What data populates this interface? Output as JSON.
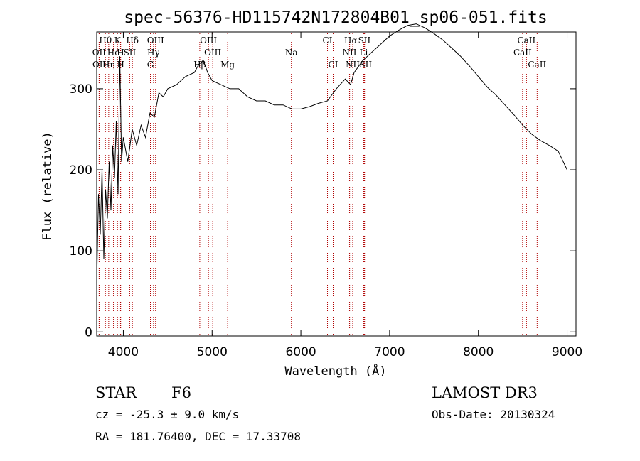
{
  "chart_data": {
    "type": "line",
    "title": "spec-56376-HD115742N172804B01_sp06-051.fits",
    "xlabel": "Wavelength (Å)",
    "ylabel": "Flux (relative)",
    "xlim": [
      3700,
      9100
    ],
    "ylim": [
      -5,
      370
    ],
    "xticks": [
      4000,
      5000,
      6000,
      7000,
      8000,
      9000
    ],
    "yticks": [
      0,
      100,
      200,
      300
    ],
    "grid": false,
    "series": [
      {
        "x": [
          3700,
          3720,
          3740,
          3760,
          3780,
          3800,
          3820,
          3840,
          3860,
          3880,
          3900,
          3920,
          3940,
          3960,
          3980,
          4000,
          4050,
          4100,
          4150,
          4200,
          4250,
          4300,
          4350,
          4400,
          4450,
          4500,
          4600,
          4700,
          4800,
          4850,
          4900,
          4950,
          5000,
          5100,
          5200,
          5300,
          5400,
          5500,
          5600,
          5700,
          5800,
          5900,
          6000,
          6100,
          6200,
          6300,
          6400,
          6500,
          6560,
          6600,
          6700,
          6800,
          6900,
          7000,
          7100,
          7200,
          7300,
          7400,
          7500,
          7600,
          7700,
          7800,
          7900,
          8000,
          8100,
          8200,
          8300,
          8400,
          8500,
          8600,
          8700,
          8800,
          8900,
          9000
        ],
        "y": [
          60,
          170,
          120,
          200,
          90,
          175,
          140,
          210,
          150,
          230,
          190,
          260,
          170,
          340,
          210,
          240,
          210,
          250,
          230,
          255,
          240,
          270,
          265,
          295,
          290,
          300,
          305,
          315,
          320,
          330,
          335,
          320,
          310,
          305,
          300,
          300,
          290,
          285,
          285,
          280,
          280,
          275,
          275,
          278,
          282,
          285,
          300,
          312,
          305,
          320,
          335,
          345,
          355,
          365,
          372,
          378,
          380,
          375,
          368,
          360,
          350,
          340,
          328,
          315,
          302,
          292,
          280,
          268,
          255,
          244,
          236,
          230,
          223,
          200
        ]
      }
    ],
    "spectral_lines": [
      {
        "label": "Hθ",
        "x": 3798,
        "row": 1
      },
      {
        "label": "K",
        "x": 3934,
        "row": 1
      },
      {
        "label": "Hδ",
        "x": 4102,
        "row": 1
      },
      {
        "label": "OIII",
        "x": 4363,
        "row": 1
      },
      {
        "label": "OIII",
        "x": 4959,
        "row": 1
      },
      {
        "label": "CI",
        "x": 6300,
        "row": 1
      },
      {
        "label": "Hα",
        "x": 6563,
        "row": 1
      },
      {
        "label": "SII",
        "x": 6716,
        "row": 1
      },
      {
        "label": "CaII",
        "x": 8542,
        "row": 1
      },
      {
        "label": "OII",
        "x": 3727,
        "row": 2
      },
      {
        "label": "He",
        "x": 3889,
        "row": 2
      },
      {
        "label": "H",
        "x": 3968,
        "row": 2
      },
      {
        "label": "SII",
        "x": 4072,
        "row": 2
      },
      {
        "label": "Hγ",
        "x": 4340,
        "row": 2
      },
      {
        "label": "OIII",
        "x": 5007,
        "row": 2
      },
      {
        "label": "Na",
        "x": 5893,
        "row": 2
      },
      {
        "label": "NII",
        "x": 6548,
        "row": 2
      },
      {
        "label": "Li",
        "x": 6708,
        "row": 2
      },
      {
        "label": "CaII",
        "x": 8498,
        "row": 2
      },
      {
        "label": "OII",
        "x": 3729,
        "row": 3
      },
      {
        "label": "Hη",
        "x": 3835,
        "row": 3
      },
      {
        "label": "H",
        "x": 3970,
        "row": 3
      },
      {
        "label": "G",
        "x": 4305,
        "row": 3
      },
      {
        "label": "Hβ",
        "x": 4861,
        "row": 3
      },
      {
        "label": "Mg",
        "x": 5175,
        "row": 3
      },
      {
        "label": "CI",
        "x": 6364,
        "row": 3
      },
      {
        "label": "NII",
        "x": 6584,
        "row": 3
      },
      {
        "label": "SII",
        "x": 6731,
        "row": 3
      },
      {
        "label": "CaII",
        "x": 8662,
        "row": 3
      }
    ]
  },
  "info": {
    "class_label": "STAR",
    "subclass": "F6",
    "survey": "LAMOST DR3",
    "cz": "cz = -25.3 ± 9.0 km/s",
    "obs_date": "Obs-Date: 20130324",
    "coords": "RA = 181.76400, DEC =  17.33708"
  }
}
